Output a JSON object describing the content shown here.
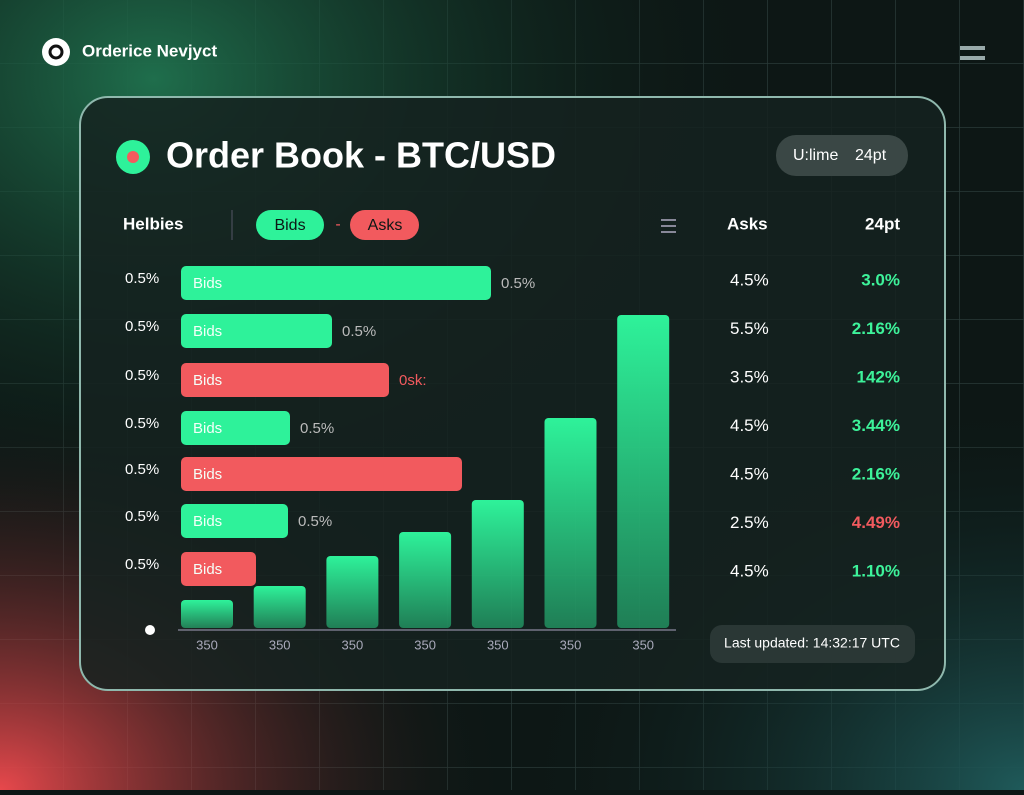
{
  "header": {
    "brand": "Orderice Nevjyct"
  },
  "panel": {
    "title": "Order Book - BTC/USD",
    "badge_label": "U:lime",
    "badge_value": "24pt"
  },
  "toolbar": {
    "label": "Helbies",
    "bids": "Bids",
    "separator": "-",
    "asks": "Asks"
  },
  "book": {
    "rows": [
      {
        "label": "0.5%",
        "side": "Bids",
        "color": "#2ef29a",
        "size": 31,
        "note": "0.5%"
      },
      {
        "label": "0.5%",
        "side": "Bids",
        "color": "#2ef29a",
        "size": 15.1,
        "note": "0.5%"
      },
      {
        "label": "0.5%",
        "side": "Bids",
        "color": "#f25a5e",
        "size": 20.8,
        "note": "0sk:"
      },
      {
        "label": "0.5%",
        "side": "Bids",
        "color": "#2ef29a",
        "size": 10.9,
        "note": "0.5%"
      },
      {
        "label": "0.5%",
        "side": "Bids",
        "color": "#f25a5e",
        "size": 28.1
      },
      {
        "label": "0.5%",
        "side": "Bids",
        "color": "#2ef29a",
        "size": 10.7,
        "note": "0.5%"
      },
      {
        "label": "0.5%",
        "side": "Bids",
        "color": "#f25a5e",
        "size": 7.5
      }
    ]
  },
  "depth": {
    "color": "#2ef29a",
    "columns": [
      {
        "label": "350",
        "value": 28
      },
      {
        "label": "350",
        "value": 42
      },
      {
        "label": "350",
        "value": 72
      },
      {
        "label": "350",
        "value": 96
      },
      {
        "label": "350",
        "value": 128
      },
      {
        "label": "350",
        "value": 210
      },
      {
        "label": "350",
        "value": 313
      }
    ]
  },
  "table": {
    "headers": [
      "Asks",
      "24pt"
    ],
    "rows": [
      {
        "ask": "4.5%",
        "change": "3.0%",
        "color": "#3df29a"
      },
      {
        "ask": "5.5%",
        "change": "2.16%",
        "color": "#3df29a"
      },
      {
        "ask": "3.5%",
        "change": "142%",
        "color": "#3df29a"
      },
      {
        "ask": "4.5%",
        "change": "3.44%",
        "color": "#3df29a"
      },
      {
        "ask": "4.5%",
        "change": "2.16%",
        "color": "#3df29a"
      },
      {
        "ask": "2.5%",
        "change": "4.49%",
        "color": "#f25a5e"
      },
      {
        "ask": "4.5%",
        "change": "1.10%",
        "color": "#3df29a"
      }
    ]
  },
  "footer": {
    "updated": "Last updated: 14:32:17 UTC"
  }
}
